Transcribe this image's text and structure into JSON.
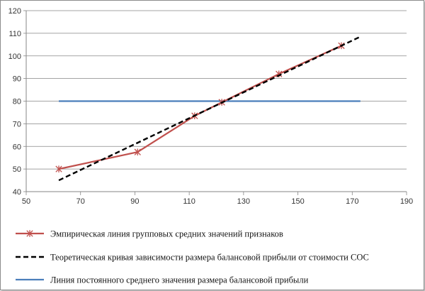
{
  "chart_data": {
    "type": "line",
    "title": "",
    "xlabel": "",
    "ylabel": "",
    "xlim": [
      50,
      190
    ],
    "ylim": [
      40,
      120
    ],
    "xticks": [
      50,
      70,
      90,
      110,
      130,
      150,
      170,
      190
    ],
    "yticks": [
      40,
      50,
      60,
      70,
      80,
      90,
      100,
      110,
      120
    ],
    "grid": "horizontal",
    "legend_position": "bottom",
    "series": [
      {
        "name": "Эмпирическая линия групповых средних значений признаков",
        "style": "solid-with-star-markers",
        "color": "#c0504d",
        "x": [
          62,
          91,
          112,
          122,
          143,
          166
        ],
        "y": [
          50,
          57.5,
          73.5,
          79.5,
          92,
          104.5
        ]
      },
      {
        "name": "Теоретическая кривая зависимости размера балансовой прибыли от стоимости СОС",
        "style": "dashed",
        "color": "#000000",
        "x": [
          62,
          173
        ],
        "y": [
          45,
          108.5
        ]
      },
      {
        "name": "Линия постоянного среднего значения размера балансовой прибыли",
        "style": "solid",
        "color": "#4a7ebb",
        "x": [
          62,
          173
        ],
        "y": [
          80,
          80
        ]
      }
    ]
  }
}
